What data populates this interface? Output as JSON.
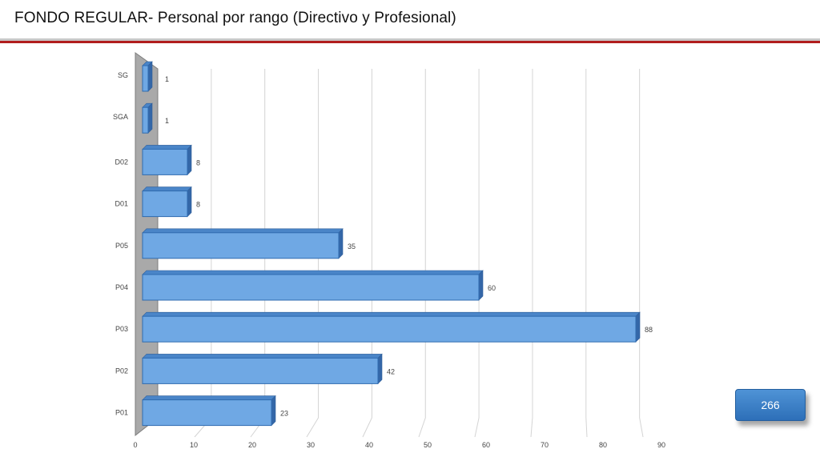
{
  "header": {
    "title": "FONDO REGULAR- Personal por rango (Directivo y Profesional)"
  },
  "total_box": {
    "value": "266"
  },
  "colors": {
    "bar_front": "#6fa8e4",
    "bar_top": "#4a85c8",
    "bar_side": "#3467a8",
    "wall": "#a9a9a9",
    "accent_rule": "#b11d1d"
  },
  "chart_data": {
    "type": "bar",
    "orientation": "horizontal",
    "style": "3d",
    "categories": [
      "SG",
      "SGA",
      "D02",
      "D01",
      "P05",
      "P04",
      "P03",
      "P02",
      "P01"
    ],
    "values": [
      1,
      1,
      8,
      8,
      35,
      60,
      88,
      42,
      23
    ],
    "xlim": [
      0,
      90
    ],
    "xticks": [
      0,
      10,
      20,
      30,
      40,
      50,
      60,
      70,
      80,
      90
    ],
    "grid": true,
    "legend": "none"
  }
}
